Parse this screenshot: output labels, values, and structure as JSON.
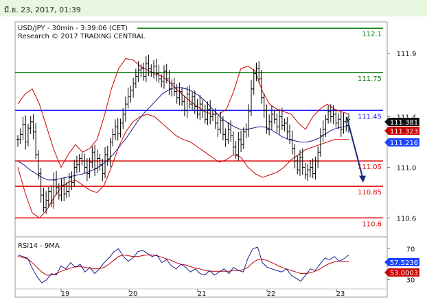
{
  "header": {
    "date_text": "มี.ย. 23, 2017, 01:39"
  },
  "chart_data": {
    "type": "candlestick",
    "title": "USD/JPY - 30min - 3:39:06 (CET)",
    "subtitle": "Research © 2017 TRADING CENTRAL",
    "x_ticks": [
      "19",
      "20",
      "21",
      "22",
      "23"
    ],
    "y_range": [
      110.45,
      112.15
    ],
    "y_ticks": [
      {
        "value": 111.9,
        "label": "111.9"
      },
      {
        "value": 111.4,
        "label": "111.4"
      },
      {
        "value": 111.0,
        "label": "111.0"
      },
      {
        "value": 110.6,
        "label": "110.6"
      }
    ],
    "levels": [
      {
        "value": 112.1,
        "label": "112.1",
        "color": "#0a7a0a"
      },
      {
        "value": 111.75,
        "label": "111.75",
        "color": "#0a7a0a"
      },
      {
        "value": 111.45,
        "label": "111.45",
        "color": "#1a1aff"
      },
      {
        "value": 111.05,
        "label": "111.05",
        "color": "#e00000"
      },
      {
        "value": 110.85,
        "label": "110.85",
        "color": "#e00000"
      },
      {
        "value": 110.6,
        "label": "110.6",
        "color": "#e00000"
      }
    ],
    "price_tags": [
      {
        "value": 111.381,
        "label": "111.381",
        "color": "#111111"
      },
      {
        "value": 111.323,
        "label": "111.323",
        "color": "#cc0000"
      },
      {
        "value": 111.216,
        "label": "111.216",
        "color": "#1a44ff"
      }
    ],
    "forecast_arrow": {
      "from": 111.4,
      "to": 110.88
    },
    "colors": {
      "bars": "#000000",
      "ma": "#1a1a8c",
      "bands": "#cc0000"
    },
    "close_series": [
      111.22,
      111.26,
      111.34,
      111.2,
      111.31,
      111.36,
      111.28,
      111.1,
      110.95,
      110.78,
      110.68,
      110.74,
      110.81,
      110.72,
      110.9,
      110.84,
      110.78,
      110.86,
      110.79,
      110.81,
      110.92,
      110.88,
      111.0,
      111.02,
      111.07,
      111.05,
      111.0,
      110.95,
      111.04,
      111.12,
      110.99,
      111.07,
      111.02,
      110.95,
      111.1,
      111.06,
      111.2,
      111.26,
      111.32,
      111.27,
      111.35,
      111.42,
      111.5,
      111.56,
      111.61,
      111.66,
      111.72,
      111.77,
      111.78,
      111.72,
      111.82,
      111.78,
      111.75,
      111.8,
      111.74,
      111.7,
      111.68,
      111.76,
      111.7,
      111.62,
      111.66,
      111.6,
      111.55,
      111.6,
      111.52,
      111.45,
      111.58,
      111.5,
      111.56,
      111.48,
      111.42,
      111.5,
      111.45,
      111.38,
      111.46,
      111.4,
      111.42,
      111.35,
      111.3,
      111.37,
      111.26,
      111.22,
      111.3,
      111.25,
      111.16,
      111.1,
      111.22,
      111.18,
      111.28,
      111.3,
      111.44,
      111.62,
      111.74,
      111.78,
      111.7,
      111.55,
      111.45,
      111.3,
      111.36,
      111.42,
      111.38,
      111.32,
      111.4,
      111.33,
      111.35,
      111.28,
      111.22,
      111.15,
      111.05,
      110.98,
      111.08,
      111.0,
      110.94,
      110.98,
      111.0,
      110.95,
      111.05,
      111.12,
      111.25,
      111.3,
      111.38,
      111.44,
      111.4,
      111.42,
      111.35,
      111.38,
      111.3,
      111.36,
      111.33,
      111.38
    ],
    "ma_series": [
      111.05,
      111.02,
      110.98,
      110.95,
      110.92,
      110.9,
      110.9,
      110.91,
      110.92,
      110.93,
      110.94,
      110.95,
      110.97,
      110.99,
      111.02,
      111.06,
      111.11,
      111.17,
      111.23,
      111.3,
      111.37,
      111.43,
      111.48,
      111.53,
      111.58,
      111.61,
      111.63,
      111.63,
      111.62,
      111.6,
      111.57,
      111.53,
      111.48,
      111.43,
      111.38,
      111.35,
      111.32,
      111.3,
      111.3,
      111.31,
      111.32,
      111.32,
      111.3,
      111.27,
      111.24,
      111.22,
      111.21,
      111.2,
      111.2,
      111.21,
      111.23,
      111.26,
      111.29,
      111.31,
      111.32,
      111.32
    ],
    "upper_band": [
      111.5,
      111.58,
      111.62,
      111.5,
      111.32,
      111.14,
      111.0,
      111.1,
      111.18,
      111.12,
      111.15,
      111.22,
      111.4,
      111.62,
      111.78,
      111.86,
      111.85,
      111.8,
      111.77,
      111.74,
      111.72,
      111.68,
      111.62,
      111.57,
      111.52,
      111.48,
      111.44,
      111.42,
      111.42,
      111.46,
      111.6,
      111.78,
      111.8,
      111.76,
      111.6,
      111.5,
      111.46,
      111.44,
      111.42,
      111.35,
      111.3,
      111.4,
      111.46,
      111.5,
      111.46,
      111.44,
      111.42
    ],
    "lower_band": [
      111.0,
      110.8,
      110.64,
      110.6,
      110.66,
      110.76,
      110.84,
      110.88,
      110.9,
      110.86,
      110.82,
      110.8,
      110.86,
      111.0,
      111.16,
      111.28,
      111.36,
      111.4,
      111.42,
      111.4,
      111.35,
      111.3,
      111.25,
      111.22,
      111.2,
      111.16,
      111.12,
      111.08,
      111.04,
      111.06,
      111.1,
      111.08,
      111.0,
      110.95,
      110.92,
      110.94,
      110.96,
      111.0,
      111.06,
      111.1,
      111.14,
      111.16,
      111.18,
      111.2,
      111.22,
      111.22,
      111.22
    ],
    "rsi": {
      "label": "RSI14 - 9MA",
      "y_range": [
        20,
        80
      ],
      "y_ticks": [
        {
          "value": 70,
          "label": "70"
        },
        {
          "value": 30,
          "label": "30"
        }
      ],
      "values": [
        62,
        60,
        58,
        45,
        34,
        26,
        30,
        38,
        36,
        48,
        44,
        52,
        46,
        50,
        40,
        46,
        38,
        44,
        52,
        58,
        66,
        70,
        60,
        54,
        58,
        66,
        68,
        64,
        60,
        62,
        52,
        56,
        48,
        44,
        50,
        46,
        40,
        44,
        38,
        36,
        42,
        36,
        40,
        44,
        38,
        46,
        42,
        40,
        58,
        70,
        72,
        52,
        46,
        44,
        42,
        40,
        44,
        36,
        32,
        28,
        36,
        44,
        42,
        50,
        58,
        56,
        60,
        54,
        57,
        62
      ],
      "ma": [
        60,
        59,
        57,
        52,
        46,
        40,
        36,
        36,
        38,
        41,
        43,
        45,
        47,
        47,
        46,
        45,
        44,
        44,
        46,
        50,
        55,
        60,
        62,
        61,
        60,
        60,
        61,
        62,
        62,
        61,
        59,
        57,
        55,
        52,
        50,
        49,
        47,
        45,
        44,
        42,
        41,
        41,
        41,
        41,
        41,
        42,
        42,
        43,
        46,
        52,
        56,
        56,
        55,
        52,
        49,
        46,
        44,
        42,
        40,
        38,
        38,
        39,
        41,
        44,
        48,
        51,
        53,
        54,
        54,
        53
      ],
      "value_tags": [
        {
          "value": 57.5236,
          "label": "57.5236",
          "color": "#1a44ff"
        },
        {
          "value": 53.0003,
          "label": "53.0003",
          "color": "#cc0000"
        }
      ]
    }
  }
}
